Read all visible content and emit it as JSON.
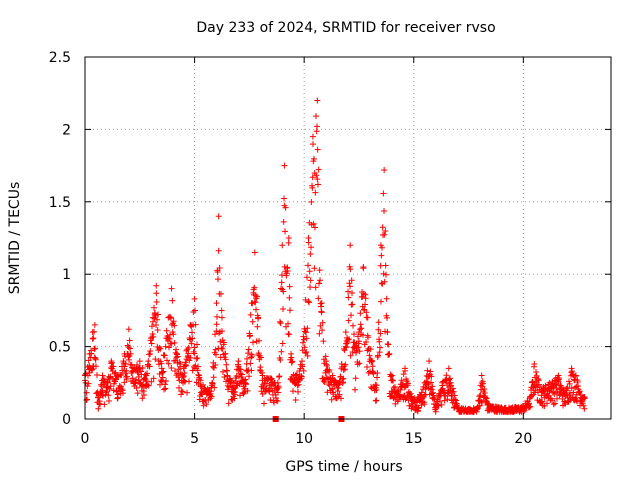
{
  "chart_data": {
    "type": "scatter",
    "title": "Day 233 of 2024, SRMTID for receiver rvso",
    "xlabel": "GPS time / hours",
    "ylabel": "SRMTID / TECUs",
    "xlim": [
      0,
      24
    ],
    "ylim": [
      0,
      2.5
    ],
    "xticks": [
      0,
      5,
      10,
      15,
      20
    ],
    "xtick_labels": [
      "0",
      "5",
      "10",
      "15",
      "20"
    ],
    "yticks": [
      0,
      0.5,
      1,
      1.5,
      2,
      2.5
    ],
    "ytick_labels": [
      "0",
      "0.5",
      "1",
      "1.5",
      "2",
      "2.5"
    ],
    "grid": true,
    "marker": "plus",
    "color": "#ff0000",
    "x_range_of_data": [
      0,
      22.8
    ],
    "series": [
      {
        "name": "SRMTID",
        "envelope_points": [
          [
            0.0,
            0.3
          ],
          [
            0.2,
            0.45
          ],
          [
            0.35,
            0.6
          ],
          [
            0.45,
            0.65
          ],
          [
            0.6,
            0.15
          ],
          [
            0.8,
            0.3
          ],
          [
            1.0,
            0.25
          ],
          [
            1.2,
            0.4
          ],
          [
            1.5,
            0.3
          ],
          [
            1.8,
            0.45
          ],
          [
            2.0,
            0.62
          ],
          [
            2.2,
            0.35
          ],
          [
            2.5,
            0.4
          ],
          [
            2.8,
            0.3
          ],
          [
            3.1,
            0.7
          ],
          [
            3.25,
            0.92
          ],
          [
            3.5,
            0.35
          ],
          [
            3.8,
            0.7
          ],
          [
            3.95,
            0.9
          ],
          [
            4.2,
            0.45
          ],
          [
            4.5,
            0.35
          ],
          [
            4.8,
            0.65
          ],
          [
            5.0,
            0.83
          ],
          [
            5.2,
            0.3
          ],
          [
            5.5,
            0.2
          ],
          [
            5.8,
            0.25
          ],
          [
            6.0,
            0.8
          ],
          [
            6.1,
            1.4
          ],
          [
            6.25,
            0.7
          ],
          [
            6.5,
            0.3
          ],
          [
            6.8,
            0.25
          ],
          [
            7.0,
            0.4
          ],
          [
            7.3,
            0.25
          ],
          [
            7.6,
            0.8
          ],
          [
            7.75,
            1.15
          ],
          [
            7.9,
            0.7
          ],
          [
            8.1,
            0.3
          ],
          [
            8.5,
            0.28
          ],
          [
            8.8,
            0.25
          ],
          [
            9.0,
            1.2
          ],
          [
            9.1,
            1.75
          ],
          [
            9.3,
            1.25
          ],
          [
            9.4,
            0.45
          ],
          [
            9.6,
            0.3
          ],
          [
            9.9,
            0.4
          ],
          [
            10.2,
            1.25
          ],
          [
            10.4,
            1.95
          ],
          [
            10.6,
            2.2
          ],
          [
            10.8,
            0.8
          ],
          [
            11.0,
            0.4
          ],
          [
            11.3,
            0.3
          ],
          [
            11.6,
            0.25
          ],
          [
            11.9,
            0.6
          ],
          [
            12.1,
            1.2
          ],
          [
            12.3,
            0.5
          ],
          [
            12.5,
            0.6
          ],
          [
            12.7,
            1.05
          ],
          [
            12.9,
            0.7
          ],
          [
            13.1,
            0.4
          ],
          [
            13.3,
            0.2
          ],
          [
            13.5,
            1.2
          ],
          [
            13.65,
            1.72
          ],
          [
            13.8,
            0.6
          ],
          [
            14.0,
            0.3
          ],
          [
            14.3,
            0.2
          ],
          [
            14.6,
            0.35
          ],
          [
            14.9,
            0.15
          ],
          [
            15.2,
            0.15
          ],
          [
            15.5,
            0.25
          ],
          [
            15.7,
            0.4
          ],
          [
            16.0,
            0.1
          ],
          [
            16.3,
            0.25
          ],
          [
            16.6,
            0.35
          ],
          [
            17.0,
            0.08
          ],
          [
            17.5,
            0.07
          ],
          [
            17.9,
            0.08
          ],
          [
            18.1,
            0.3
          ],
          [
            18.4,
            0.1
          ],
          [
            19.0,
            0.08
          ],
          [
            19.5,
            0.08
          ],
          [
            20.0,
            0.09
          ],
          [
            20.3,
            0.15
          ],
          [
            20.5,
            0.38
          ],
          [
            20.8,
            0.22
          ],
          [
            21.2,
            0.25
          ],
          [
            21.6,
            0.3
          ],
          [
            21.9,
            0.18
          ],
          [
            22.2,
            0.35
          ],
          [
            22.4,
            0.3
          ],
          [
            22.8,
            0.15
          ]
        ],
        "outliers_near_zero": [
          [
            8.7,
            0.0
          ],
          [
            11.7,
            0.0
          ]
        ]
      }
    ]
  }
}
